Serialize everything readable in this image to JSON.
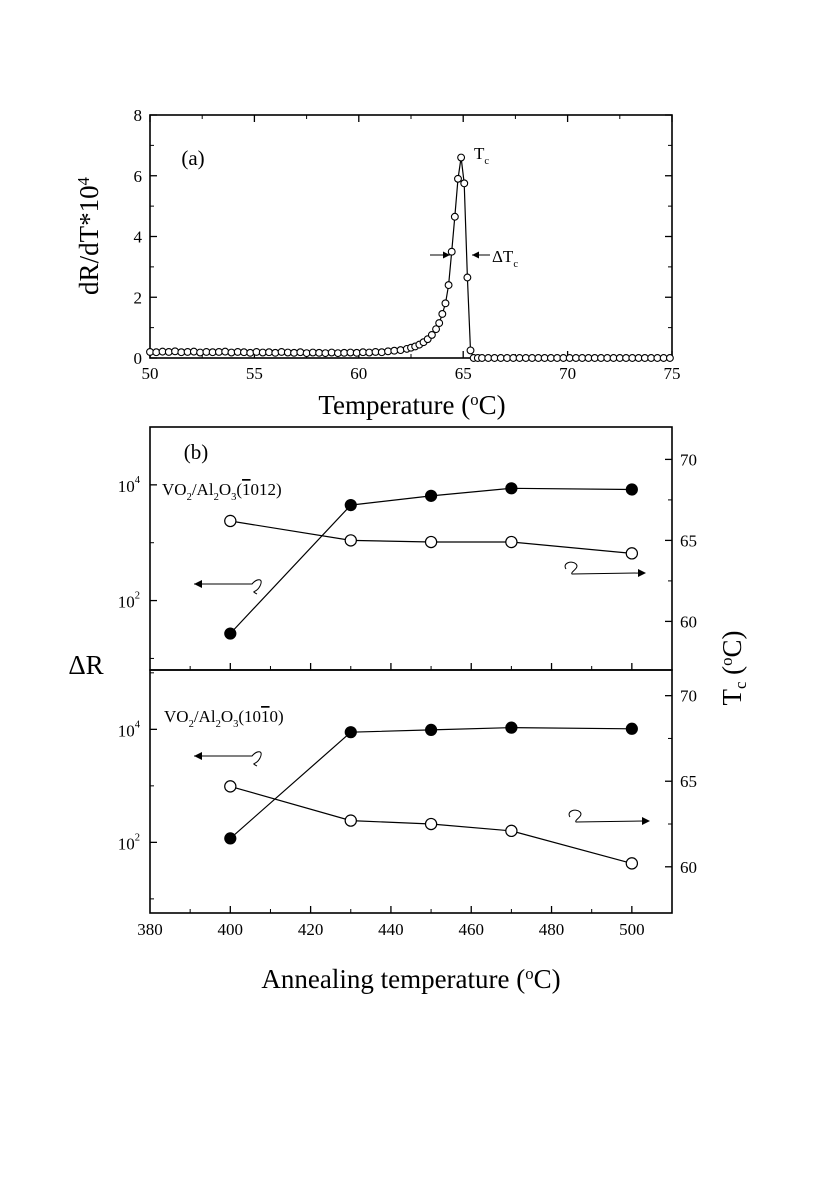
{
  "chart_data": [
    {
      "type": "scatter",
      "panel": "(a)",
      "panel_label": "(a)",
      "xlabel_parts": [
        "Temperature (",
        "o",
        "C)"
      ],
      "ylabel_parts": [
        "dR/dT*10",
        "4"
      ],
      "xlim": [
        50,
        75
      ],
      "ylim": [
        0,
        8
      ],
      "xticks": [
        50,
        55,
        60,
        65,
        70,
        75
      ],
      "yticks": [
        0,
        2,
        4,
        6,
        8
      ],
      "annotations": {
        "peak": {
          "main": "T",
          "sub": "c"
        },
        "width": {
          "main": "ΔT",
          "sub": "c"
        }
      },
      "series": [
        {
          "name": "dR/dT",
          "marker": "open-circle",
          "x": [
            50.0,
            50.3,
            50.6,
            50.9,
            51.2,
            51.5,
            51.8,
            52.1,
            52.4,
            52.7,
            53.0,
            53.3,
            53.6,
            53.9,
            54.2,
            54.5,
            54.8,
            55.1,
            55.4,
            55.7,
            56.0,
            56.3,
            56.6,
            56.9,
            57.2,
            57.5,
            57.8,
            58.1,
            58.4,
            58.7,
            59.0,
            59.3,
            59.6,
            59.9,
            60.2,
            60.5,
            60.8,
            61.1,
            61.4,
            61.7,
            62.0,
            62.3,
            62.5,
            62.7,
            62.9,
            63.1,
            63.3,
            63.5,
            63.7,
            63.85,
            64.0,
            64.15,
            64.3,
            64.45,
            64.6,
            64.75,
            64.9,
            65.05,
            65.2,
            65.35,
            65.5,
            65.7,
            65.9,
            66.2,
            66.5,
            66.8,
            67.1,
            67.4,
            67.7,
            68.0,
            68.3,
            68.6,
            68.9,
            69.2,
            69.5,
            69.8,
            70.1,
            70.4,
            70.7,
            71.0,
            71.3,
            71.6,
            71.9,
            72.2,
            72.5,
            72.8,
            73.1,
            73.4,
            73.7,
            74.0,
            74.3,
            74.6,
            74.9
          ],
          "y": [
            0.2,
            0.19,
            0.21,
            0.2,
            0.22,
            0.19,
            0.2,
            0.21,
            0.18,
            0.2,
            0.19,
            0.2,
            0.21,
            0.18,
            0.2,
            0.19,
            0.17,
            0.2,
            0.18,
            0.19,
            0.17,
            0.2,
            0.18,
            0.17,
            0.19,
            0.16,
            0.18,
            0.17,
            0.16,
            0.18,
            0.16,
            0.17,
            0.18,
            0.17,
            0.19,
            0.18,
            0.2,
            0.19,
            0.22,
            0.24,
            0.26,
            0.3,
            0.34,
            0.38,
            0.44,
            0.52,
            0.62,
            0.76,
            0.95,
            1.15,
            1.45,
            1.8,
            2.4,
            3.5,
            4.65,
            5.9,
            6.6,
            5.75,
            2.65,
            0.25,
            0.0,
            0.0,
            0.0,
            0.0,
            0.0,
            0.0,
            0.0,
            0.0,
            0.0,
            0.0,
            0.0,
            0.0,
            0.0,
            0.0,
            0.0,
            0.0,
            0.0,
            0.0,
            0.0,
            0.0,
            0.0,
            0.0,
            0.0,
            0.0,
            0.0,
            0.0,
            0.0,
            0.0,
            0.0,
            0.0,
            0.0,
            0.0,
            0.0
          ]
        }
      ]
    },
    {
      "type": "line",
      "panel": "(b)",
      "panel_label": "(b)",
      "sample_label_parts": [
        "VO",
        "2",
        "/Al",
        "2",
        "O",
        "3",
        "(",
        "1",
        "012)"
      ],
      "sample_overline": "1",
      "xlim": [
        380,
        510
      ],
      "left_axis": {
        "scale": "log",
        "range_decades": [
          0.8,
          5.0
        ],
        "ticks": [
          {
            "main": "10",
            "exp": "2",
            "decade": 2
          },
          {
            "main": "10",
            "exp": "4",
            "decade": 4
          }
        ]
      },
      "right_axis": {
        "ylim": [
          57,
          72
        ],
        "ticks": [
          60,
          65,
          70
        ]
      },
      "x": [
        400,
        430,
        450,
        470,
        500
      ],
      "series": [
        {
          "name": "ΔR",
          "axis": "left",
          "marker": "filled-circle",
          "log10_values": [
            1.43,
            3.65,
            3.81,
            3.94,
            3.92
          ]
        },
        {
          "name": "Tc",
          "axis": "right",
          "marker": "open-circle",
          "values": [
            66.2,
            65.0,
            64.9,
            64.9,
            64.2
          ]
        }
      ]
    },
    {
      "type": "line",
      "panel": "(b-lower)",
      "sample_label_parts": [
        "VO",
        "2",
        "/Al",
        "2",
        "O",
        "3",
        "(10",
        "1",
        "0)"
      ],
      "sample_overline": "1",
      "xlim": [
        380,
        510
      ],
      "xticks": [
        380,
        400,
        420,
        440,
        460,
        480,
        500
      ],
      "xlabel_parts": [
        "Annealing temperature (",
        "o",
        "C)"
      ],
      "left_axis": {
        "scale": "log",
        "range_decades": [
          0.75,
          5.05
        ],
        "ticks": [
          {
            "main": "10",
            "exp": "2",
            "decade": 2
          },
          {
            "main": "10",
            "exp": "4",
            "decade": 4
          }
        ]
      },
      "right_axis": {
        "ylim": [
          57.3,
          71.5
        ],
        "ticks": [
          60,
          65,
          70
        ]
      },
      "x": [
        400,
        430,
        450,
        470,
        500
      ],
      "series": [
        {
          "name": "ΔR",
          "axis": "left",
          "marker": "filled-circle",
          "log10_values": [
            2.07,
            3.95,
            3.99,
            4.03,
            4.01
          ]
        },
        {
          "name": "Tc",
          "axis": "right",
          "marker": "open-circle",
          "values": [
            64.7,
            62.7,
            62.5,
            62.1,
            60.2
          ]
        }
      ]
    }
  ],
  "shared": {
    "left_ylabel": "ΔR",
    "right_ylabel_parts": [
      "T",
      "c",
      " (",
      "o",
      "C)"
    ]
  }
}
